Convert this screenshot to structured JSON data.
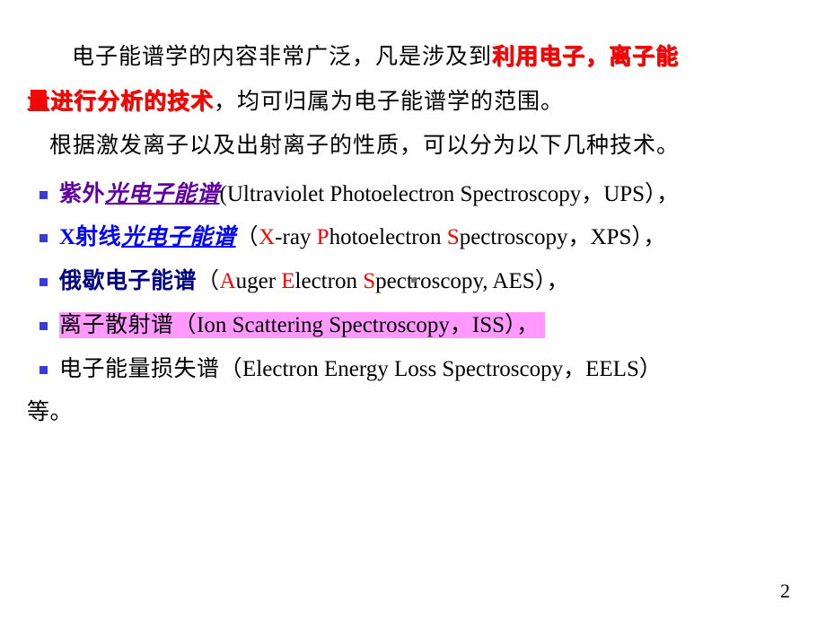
{
  "intro": {
    "line1_pre": "电子能谱学的内容非常广泛，凡是涉及到",
    "line1_emph": "利用电子，离子能",
    "line2_emph": "量进行分析的技术",
    "line2_post": "，均可归属为电子能谱学的范围。",
    "line3": "根据激发离子以及出射离子的性质，可以分为以下几种技术。"
  },
  "items": [
    {
      "zh_bold": "紫外",
      "zh_italic": "光电子能谱",
      "paren_open": "(",
      "en_pre": "Ultraviolet Photoelectron Spectroscopy，",
      "en_abbr": "UPS",
      "paren_close": "）",
      "tail": "，",
      "zh_color": "#6000a0",
      "italic_color": "#6000a0"
    },
    {
      "zh_bold": "X射线",
      "zh_italic": "光电子能谱",
      "paren_open": "（",
      "en_redcap": [
        [
          "X",
          "-ray "
        ],
        [
          "P",
          "hotoelectron "
        ],
        [
          "S",
          "pectroscopy"
        ]
      ],
      "en_post": "，XPS",
      "paren_close": "）",
      "tail": "，",
      "zh_color": "#0000ff",
      "italic_color": "#0000ff"
    },
    {
      "zh_bold": "俄歇电子能谱",
      "zh_italic": "",
      "paren_open": "（",
      "en_redcap": [
        [
          "A",
          "uger "
        ],
        [
          "E",
          "lectron "
        ],
        [
          "S",
          "pectroscopy"
        ]
      ],
      "en_post": ", AES",
      "paren_close": "）",
      "tail": "，",
      "zh_color": "#000080",
      "italic_color": "#000080"
    },
    {
      "highlight": true,
      "zh_plain": "离子散射谱",
      "paren_open": "（",
      "en_pre": "Ion Scattering Spectroscopy，",
      "en_abbr": "ISS",
      "paren_close": "）",
      "tail": "，"
    },
    {
      "zh_plain": "电子能量损失谱",
      "paren_open": "（",
      "en_pre": "Electron Energy Loss Spectroscopy，",
      "en_abbr": "EELS",
      "paren_close": "）",
      "tail_nextline": "等。"
    }
  ],
  "page_number": "2",
  "colors": {
    "red": "#ff0000",
    "highlight_bg": "#ff99ff",
    "bullet": "#3a3ad6",
    "text": "#000000"
  }
}
